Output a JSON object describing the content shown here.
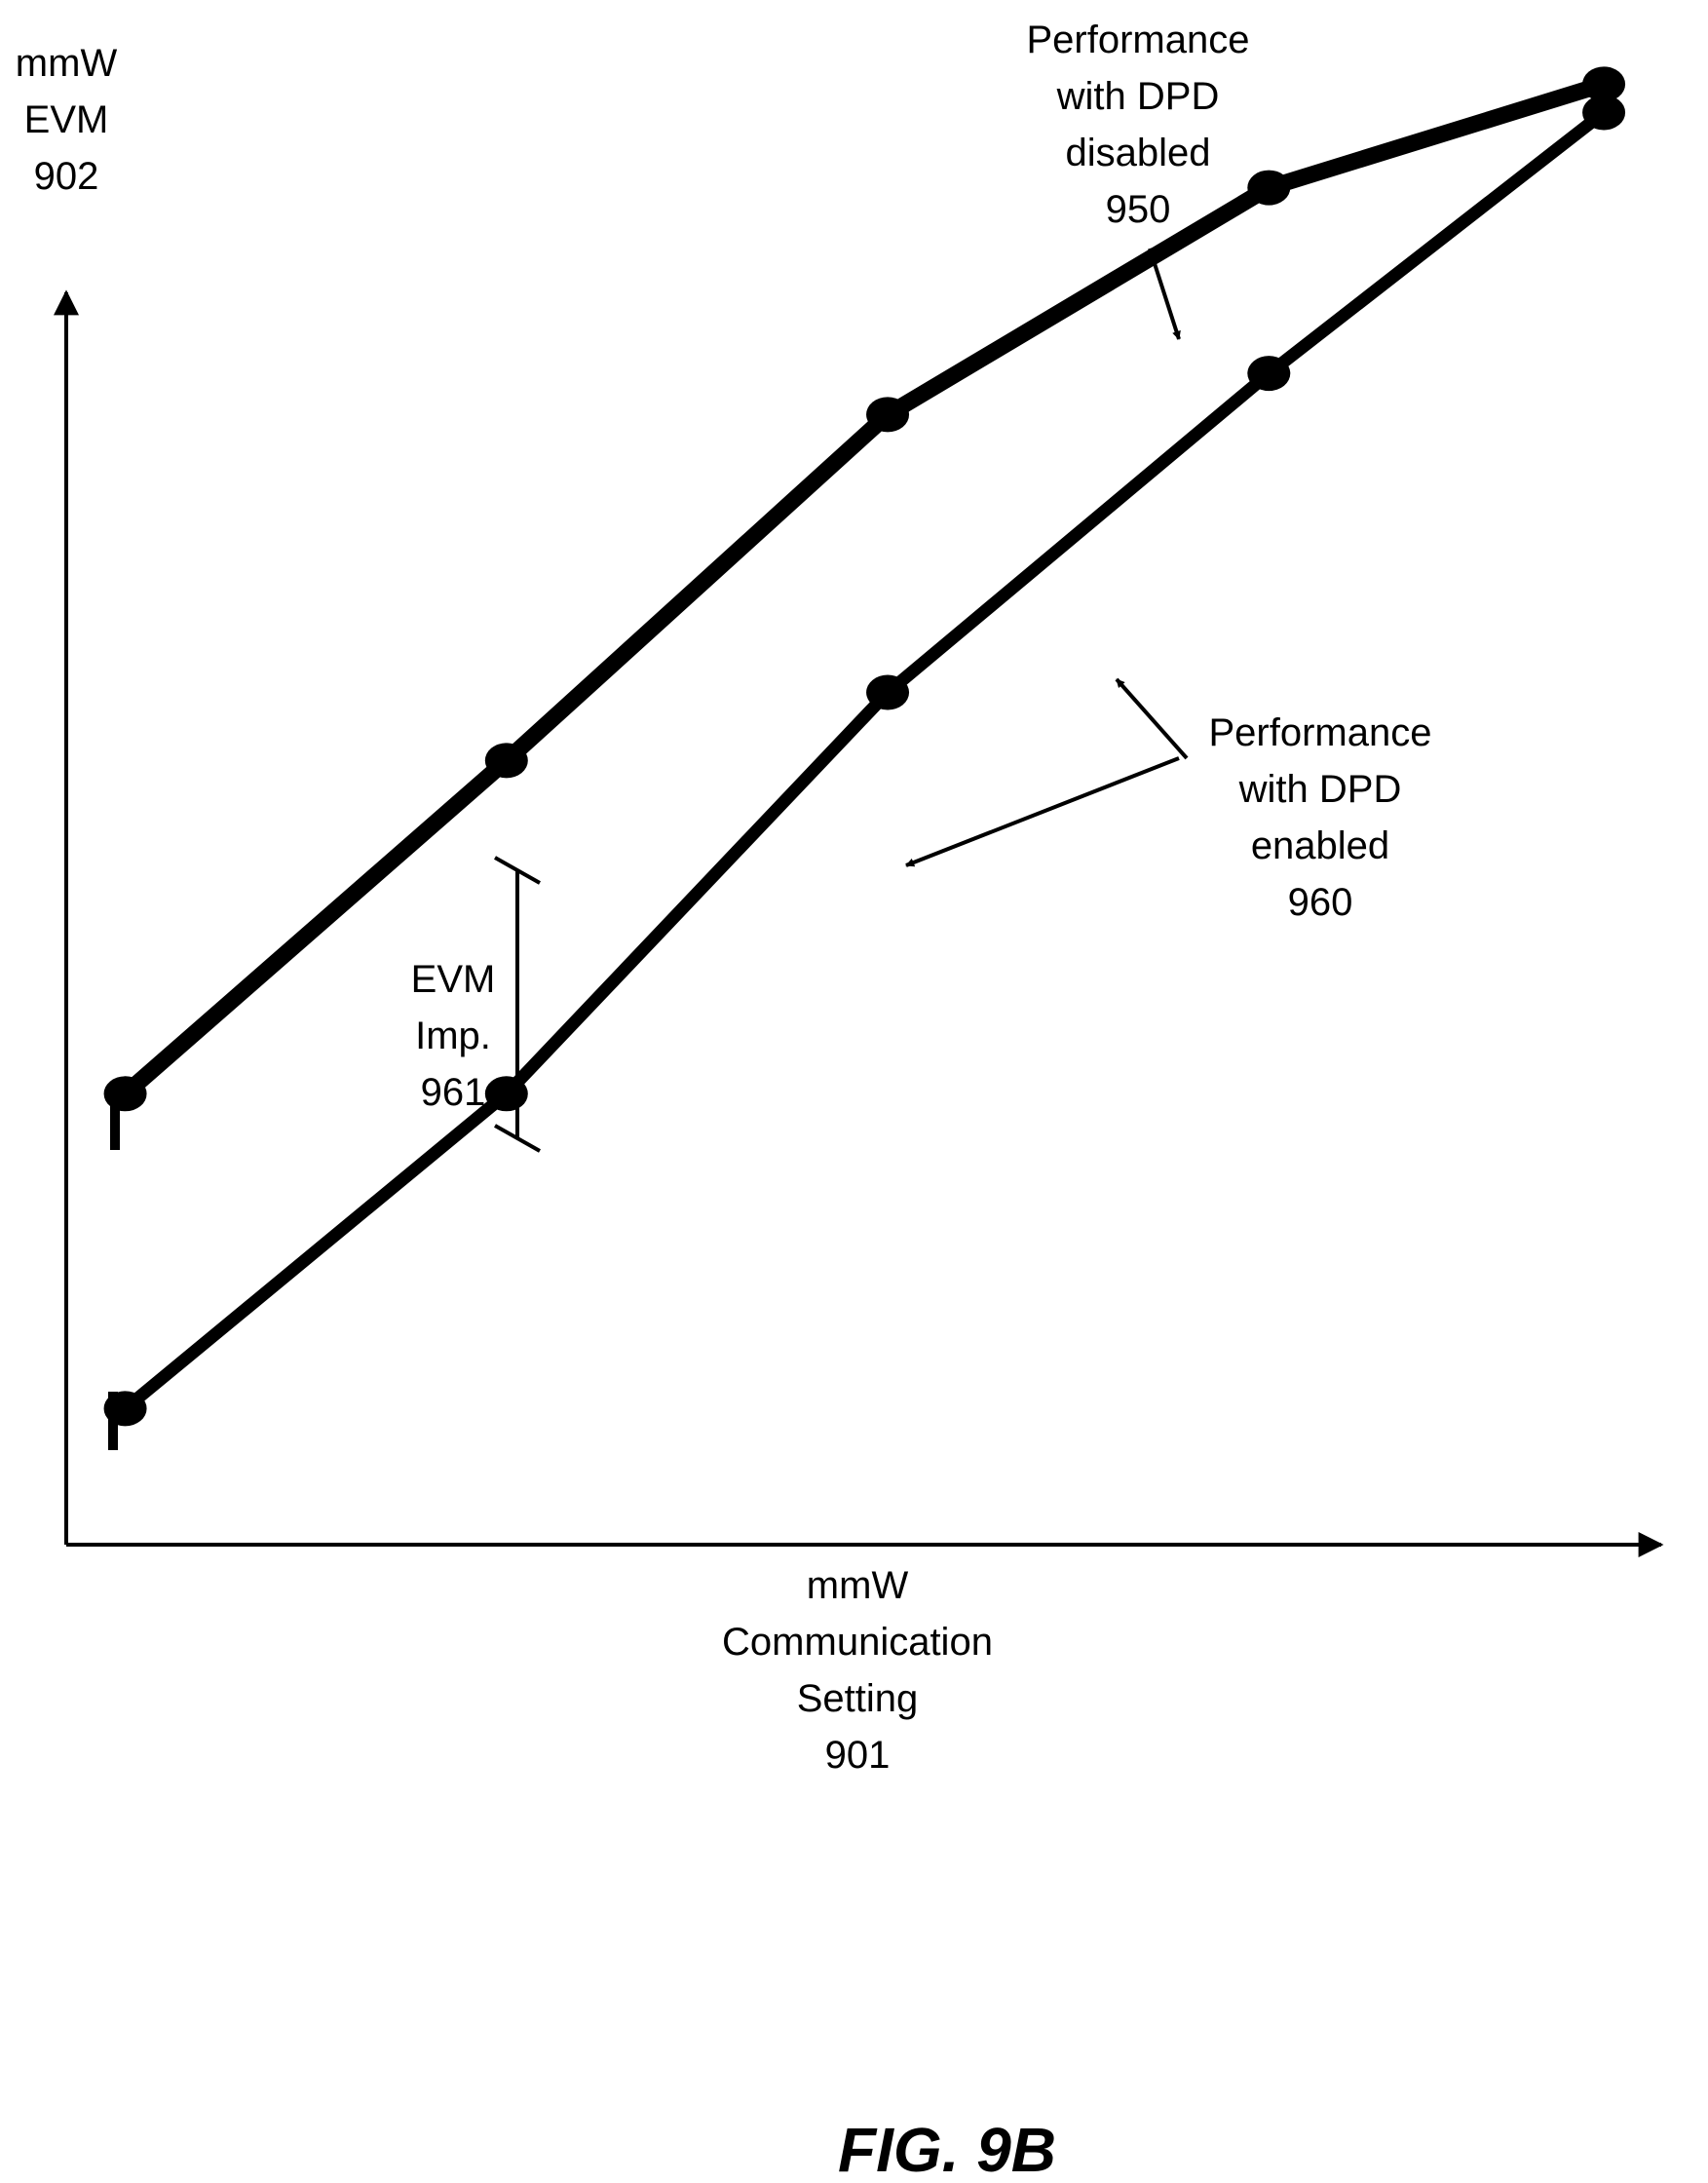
{
  "figure": {
    "caption": "FIG. 9B"
  },
  "chart_data": {
    "type": "line",
    "title": "",
    "xlabel": [
      "mmW",
      "Communication",
      "Setting",
      "901"
    ],
    "ylabel": [
      "mmW",
      "EVM",
      "902"
    ],
    "xlim": [
      0,
      10
    ],
    "ylim": [
      0,
      10
    ],
    "x": [
      0.37,
      2.76,
      5.15,
      7.54,
      9.64
    ],
    "series": [
      {
        "name": "Performance with DPD disabled 950",
        "values": [
          3.18,
          5.53,
          7.97,
          9.57,
          10.3
        ]
      },
      {
        "name": "Performance with DPD enabled 960",
        "values": [
          0.96,
          3.18,
          6.01,
          8.26,
          10.1
        ]
      }
    ],
    "grid": false,
    "legend": "none",
    "annotations": [
      {
        "target": "series-1",
        "lines": [
          "Performance",
          "with DPD",
          "disabled",
          "950"
        ]
      },
      {
        "target": "series-2",
        "lines": [
          "Performance",
          "with DPD",
          "enabled",
          "960"
        ]
      },
      {
        "target": "gap",
        "lines": [
          "EVM",
          "Imp.",
          "961"
        ]
      }
    ]
  },
  "style": {
    "ink": "#000000",
    "background": "#ffffff"
  }
}
